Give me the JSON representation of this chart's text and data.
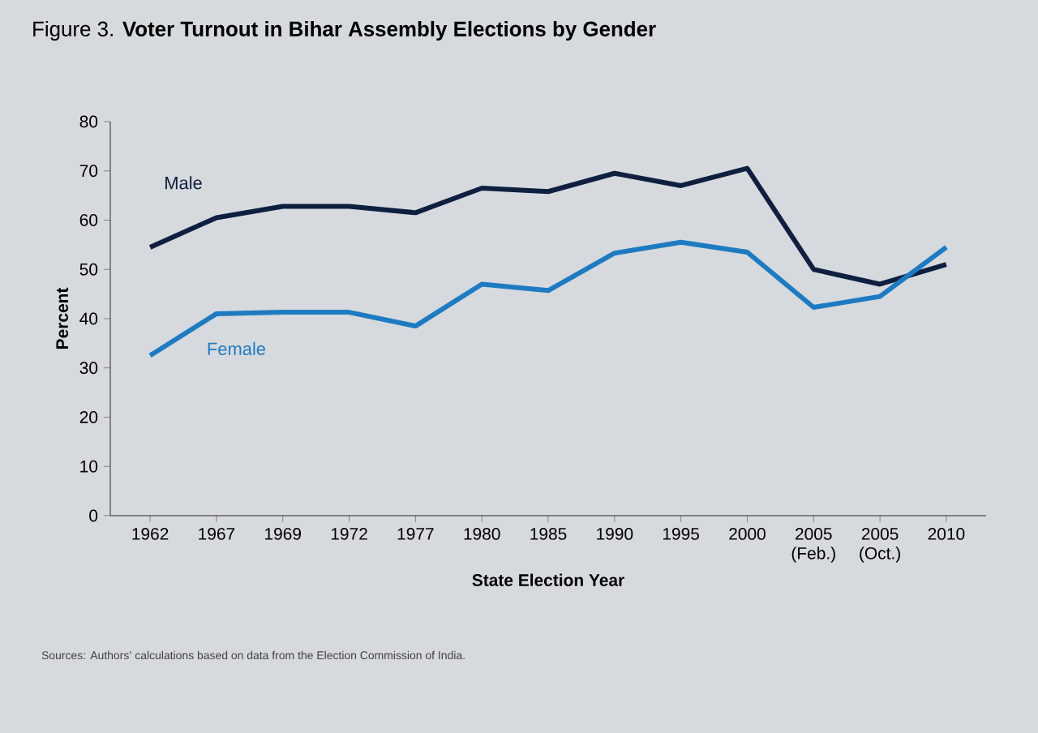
{
  "chart_data": {
    "type": "line",
    "title": "Figure 3. **Voter Turnout in Bihar Assembly Elections by Gender**",
    "xlabel": "State Election Year",
    "ylabel": "Percent",
    "categories": [
      "1962",
      "1967",
      "1969",
      "1972",
      "1977",
      "1980",
      "1985",
      "1990",
      "1995",
      "2000",
      "2005 (Feb.)",
      "2005 (Oct.)",
      "2010"
    ],
    "series": [
      {
        "name": "Male",
        "color": "#0f1f3f",
        "values": [
          54.5,
          60.5,
          62.8,
          62.8,
          61.5,
          66.5,
          65.8,
          69.5,
          67,
          70.5,
          50,
          47,
          51
        ]
      },
      {
        "name": "Female",
        "color": "#1f7bc1",
        "values": [
          32.5,
          41,
          41.3,
          41.3,
          38.5,
          47,
          45.7,
          53.3,
          55.5,
          53.5,
          42.3,
          44.5,
          54.5
        ]
      }
    ],
    "ylim": [
      0,
      80
    ],
    "yticks": [
      0,
      10,
      20,
      30,
      40,
      50,
      60,
      70,
      80
    ],
    "grid": false,
    "marker": "none",
    "line_style": "solid",
    "annotations": [
      "Sources: Authors’ calculations based on data from the Election Commission of India."
    ]
  }
}
